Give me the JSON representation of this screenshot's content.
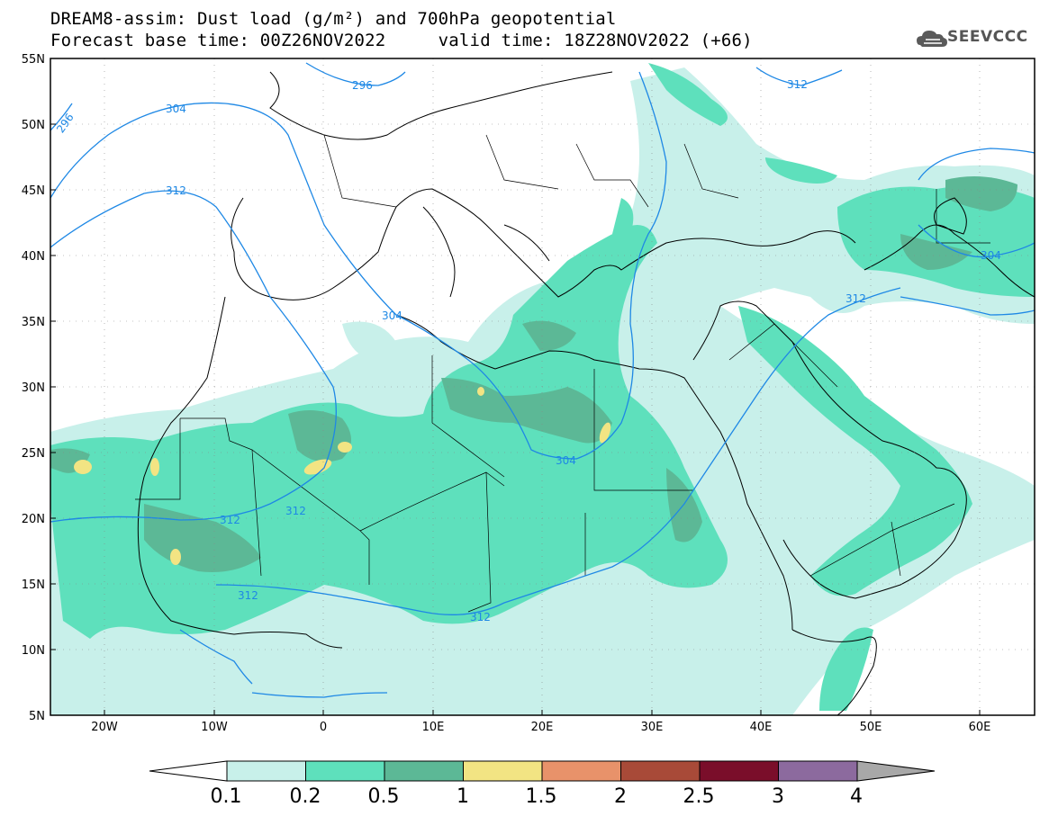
{
  "title": {
    "line1": "DREAM8-assim: Dust load (g/m²) and 700hPa geopotential",
    "line2": "Forecast base time: 00Z26NOV2022     valid time: 18Z28NOV2022 (+66)"
  },
  "logo": {
    "text": "SEEVCCC",
    "icon": "cloud-icon"
  },
  "map": {
    "extent": {
      "lon": [
        -25,
        65
      ],
      "lat": [
        5,
        55
      ]
    },
    "lat_ticks": [
      "55N",
      "50N",
      "45N",
      "40N",
      "35N",
      "30N",
      "25N",
      "20N",
      "15N",
      "10N",
      "5N"
    ],
    "lon_ticks": [
      "20W",
      "10W",
      "0",
      "10E",
      "20E",
      "30E",
      "40E",
      "50E",
      "60E"
    ],
    "contour_labels": [
      "296",
      "296",
      "304",
      "312",
      "312",
      "304",
      "312",
      "304",
      "304",
      "312",
      "312",
      "312",
      "312"
    ]
  },
  "colorbar": {
    "labels": [
      "0.1",
      "0.2",
      "0.5",
      "1",
      "1.5",
      "2",
      "2.5",
      "3",
      "4"
    ],
    "colors": [
      "#c8f0ea",
      "#5ee0bc",
      "#5cb896",
      "#f2e483",
      "#e8926a",
      "#a84a38",
      "#7a0e2a",
      "#8c6a9e",
      "#a8a8a8"
    ]
  },
  "colors": {
    "contour": "#1e88e5",
    "land_border": "#000000"
  }
}
